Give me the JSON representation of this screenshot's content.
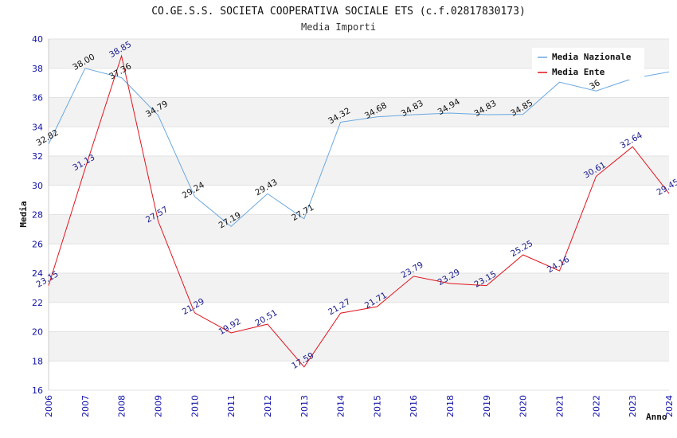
{
  "chart_data": {
    "type": "line",
    "title": "CO.GE.S.S. SOCIETA COOPERATIVA SOCIALE ETS (c.f.02817830173)",
    "subtitle": "Media Importi",
    "xlabel": "Anno",
    "ylabel": "Media",
    "ylim": [
      16,
      40
    ],
    "yticks": [
      "16",
      "18",
      "20",
      "22",
      "24",
      "26",
      "28",
      "30",
      "32",
      "34",
      "36",
      "38",
      "40"
    ],
    "categories": [
      "2006",
      "2007",
      "2008",
      "2009",
      "2010",
      "2011",
      "2012",
      "2013",
      "2014",
      "2015",
      "2016",
      "2018",
      "2019",
      "2020",
      "2021",
      "2022",
      "2023",
      "2024"
    ],
    "series": [
      {
        "name": "Media Nazionale",
        "color": "#6aa8e0",
        "values": [
          32.82,
          38.0,
          37.36,
          34.79,
          29.24,
          27.19,
          29.43,
          27.71,
          34.32,
          34.68,
          34.83,
          34.94,
          34.83,
          34.85,
          37.05,
          36.45,
          37.3,
          37.75
        ],
        "labels": [
          "32.82",
          "38.00",
          "37.36",
          "34.79",
          "29.24",
          "27.19",
          "29.43",
          "27.71",
          "34.32",
          "34.68",
          "34.83",
          "34.94",
          "34.83",
          "34.85",
          "",
          "36",
          "",
          ""
        ]
      },
      {
        "name": "Media Ente",
        "color": "#e0141e",
        "values": [
          23.15,
          31.13,
          38.85,
          27.57,
          21.29,
          19.92,
          20.51,
          17.59,
          21.27,
          21.71,
          23.79,
          23.29,
          23.15,
          25.25,
          24.16,
          30.61,
          32.64,
          29.45
        ],
        "labels": [
          "23.15",
          "31.13",
          "38.85",
          "27.57",
          "21.29",
          "19.92",
          "20.51",
          "17.59",
          "21.27",
          "21.71",
          "23.79",
          "23.29",
          "23.15",
          "25.25",
          "24.16",
          "30.61",
          "32.64",
          "29.45"
        ]
      }
    ],
    "grid": true,
    "legend_position": "top-right"
  }
}
